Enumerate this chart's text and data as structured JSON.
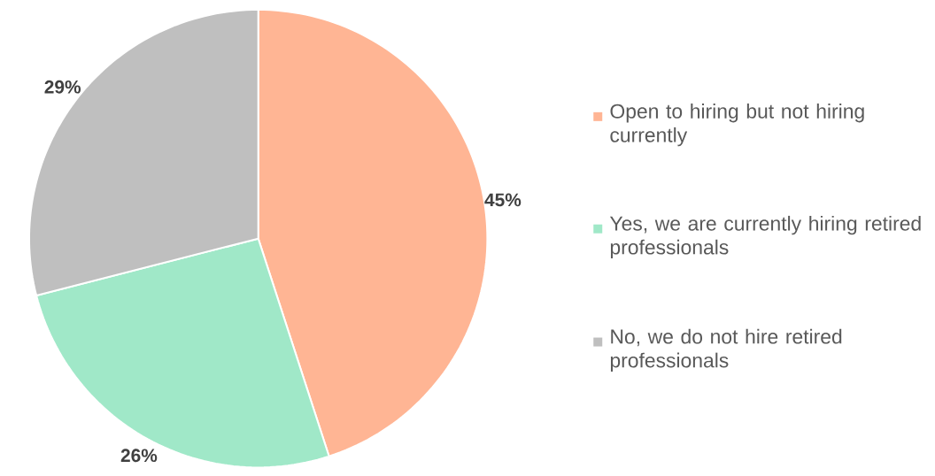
{
  "chart_data": {
    "type": "pie",
    "categories": [
      "Open to hiring but not hiring currently",
      "Yes, we are currently hiring retired professionals",
      "No, we do not hire retired professionals"
    ],
    "values": [
      45,
      26,
      29
    ],
    "colors": [
      "#ffb594",
      "#a0e8c8",
      "#bfbfbf"
    ],
    "value_labels": [
      "45%",
      "26%",
      "29%"
    ],
    "legend": "right"
  }
}
